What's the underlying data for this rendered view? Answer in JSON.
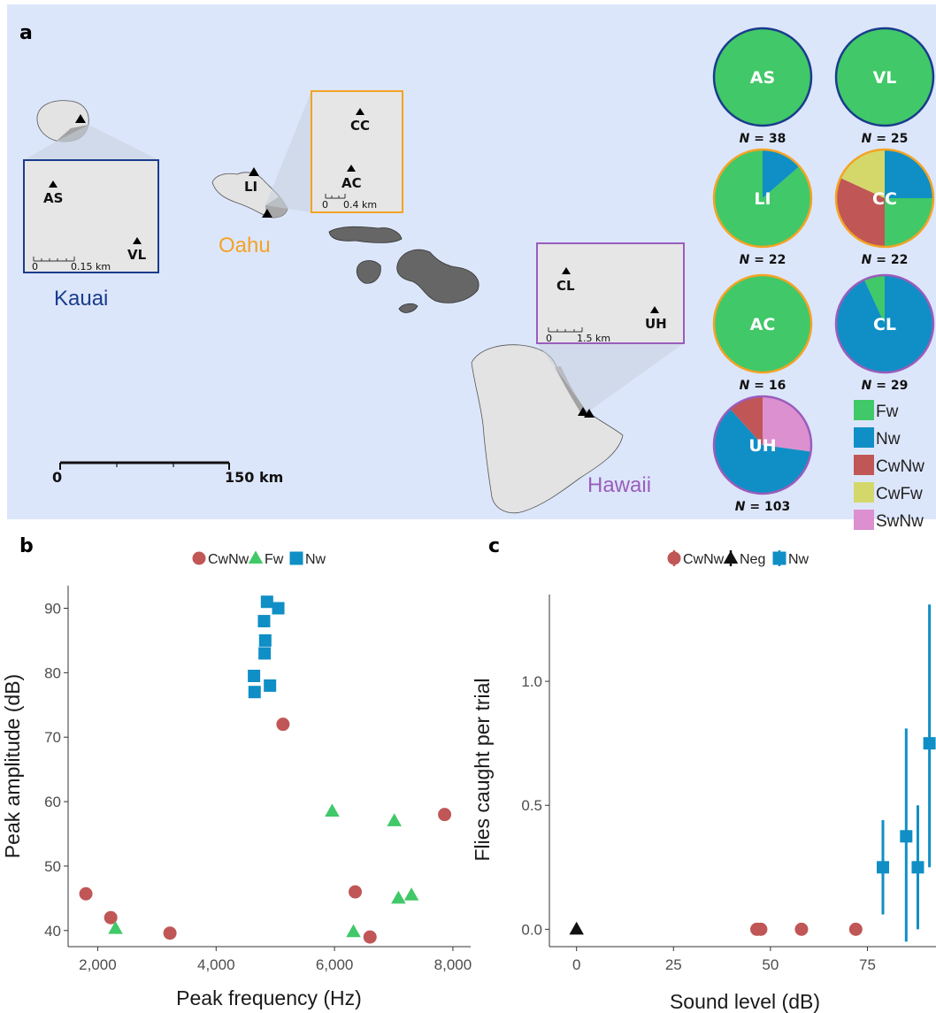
{
  "colors": {
    "Fw": "#41c868",
    "Nw": "#0f8fc5",
    "CwNw": "#c05656",
    "CwFw": "#d4d86a",
    "SwNw": "#dc90d0",
    "Neg": "#111111",
    "kauai": "#1a3c8c",
    "oahu": "#f3a324",
    "hawaii": "#9a5dbc",
    "sea": "#dce6fb"
  },
  "panel_a": {
    "label": "a",
    "islands": {
      "kauai": "Kauai",
      "oahu": "Oahu",
      "hawaii": "Hawaii"
    },
    "sites": {
      "AS": "AS",
      "VL": "VL",
      "LI": "LI",
      "CC": "CC",
      "AC": "AC",
      "CL": "CL",
      "UH": "UH"
    },
    "scalebars": {
      "kauai_zero": "0",
      "kauai_km": "0.15 km",
      "oahu_zero": "0",
      "oahu_km": "0.4 km",
      "hawaii_zero": "0",
      "hawaii_km": "1.5 km",
      "main_zero": "0",
      "main_km": "150 km"
    },
    "pies": [
      {
        "site": "AS",
        "n": "38",
        "border": "kauai",
        "slices": [
          {
            "key": "Fw",
            "value": 38
          }
        ]
      },
      {
        "site": "VL",
        "n": "25",
        "border": "kauai",
        "slices": [
          {
            "key": "Fw",
            "value": 25
          }
        ]
      },
      {
        "site": "LI",
        "n": "22",
        "border": "oahu",
        "slices": [
          {
            "key": "Nw",
            "value": 3
          },
          {
            "key": "Fw",
            "value": 19
          }
        ]
      },
      {
        "site": "CC",
        "n": "22",
        "border": "oahu",
        "slices": [
          {
            "key": "Nw",
            "value": 5.5
          },
          {
            "key": "Fw",
            "value": 5.5
          },
          {
            "key": "CwNw",
            "value": 7
          },
          {
            "key": "CwFw",
            "value": 4
          }
        ]
      },
      {
        "site": "AC",
        "n": "16",
        "border": "oahu",
        "slices": [
          {
            "key": "Fw",
            "value": 16
          }
        ]
      },
      {
        "site": "CL",
        "n": "29",
        "border": "hawaii",
        "slices": [
          {
            "key": "Nw",
            "value": 27
          },
          {
            "key": "Fw",
            "value": 2
          }
        ]
      },
      {
        "site": "UH",
        "n": "103",
        "border": "hawaii",
        "slices": [
          {
            "key": "SwNw",
            "value": 28
          },
          {
            "key": "Nw",
            "value": 63
          },
          {
            "key": "CwNw",
            "value": 12
          }
        ]
      }
    ],
    "legend": [
      "Fw",
      "Nw",
      "CwNw",
      "CwFw",
      "SwNw"
    ]
  },
  "chart_data": [
    {
      "panel": "b",
      "type": "scatter",
      "xlabel": "Peak frequency (Hz)",
      "ylabel": "Peak amplitude (dB)",
      "xlim": [
        1500,
        8300
      ],
      "ylim": [
        37.5,
        93.5
      ],
      "xticks": [
        2000,
        4000,
        6000,
        8000
      ],
      "xtick_labels": [
        "2,000",
        "4,000",
        "6,000",
        "8,000"
      ],
      "yticks": [
        40,
        50,
        60,
        70,
        80,
        90
      ],
      "ytick_labels": [
        "40",
        "50",
        "60",
        "70",
        "80",
        "90"
      ],
      "grid": false,
      "legend_position": "top",
      "series": [
        {
          "name": "CwNw",
          "marker": "circle",
          "points": [
            [
              1800,
              45.7
            ],
            [
              2220,
              42
            ],
            [
              3220,
              39.6
            ],
            [
              5130,
              72
            ],
            [
              6350,
              46
            ],
            [
              6600,
              39
            ],
            [
              7860,
              58
            ]
          ]
        },
        {
          "name": "Fw",
          "marker": "triangle",
          "points": [
            [
              2300,
              40.3
            ],
            [
              5960,
              58.5
            ],
            [
              6320,
              39.8
            ],
            [
              7010,
              57
            ],
            [
              7080,
              45
            ],
            [
              7300,
              45.5
            ]
          ]
        },
        {
          "name": "Nw",
          "marker": "square",
          "points": [
            [
              4860,
              91
            ],
            [
              5050,
              90
            ],
            [
              4810,
              88
            ],
            [
              4830,
              85
            ],
            [
              4820,
              83
            ],
            [
              4640,
              79.5
            ],
            [
              4650,
              77
            ],
            [
              4910,
              78
            ]
          ]
        }
      ]
    },
    {
      "panel": "c",
      "type": "scatter",
      "xlabel": "Sound level (dB)",
      "ylabel": "Flies caught per trial",
      "xlim": [
        -7,
        92
      ],
      "ylim": [
        -0.07,
        1.35
      ],
      "xticks": [
        0,
        25,
        50,
        75
      ],
      "xtick_labels": [
        "0",
        "25",
        "50",
        "75"
      ],
      "yticks": [
        0,
        0.5,
        1.0
      ],
      "ytick_labels": [
        "0.0",
        "0.5",
        "1.0"
      ],
      "grid": false,
      "legend_position": "top",
      "series": [
        {
          "name": "CwNw",
          "marker": "circle",
          "points": [
            [
              46.5,
              0
            ],
            [
              47.5,
              0
            ],
            [
              58,
              0
            ],
            [
              72,
              0
            ]
          ]
        },
        {
          "name": "Neg",
          "marker": "triangle",
          "points": [
            [
              0,
              0
            ]
          ]
        },
        {
          "name": "Nw",
          "marker": "square",
          "points": [
            [
              79,
              0.25,
              0.06,
              0.44
            ],
            [
              85,
              0.375,
              -0.05,
              0.81
            ],
            [
              88,
              0.25,
              0.0,
              0.5
            ],
            [
              91,
              0.75,
              0.25,
              1.31
            ]
          ]
        }
      ]
    }
  ]
}
